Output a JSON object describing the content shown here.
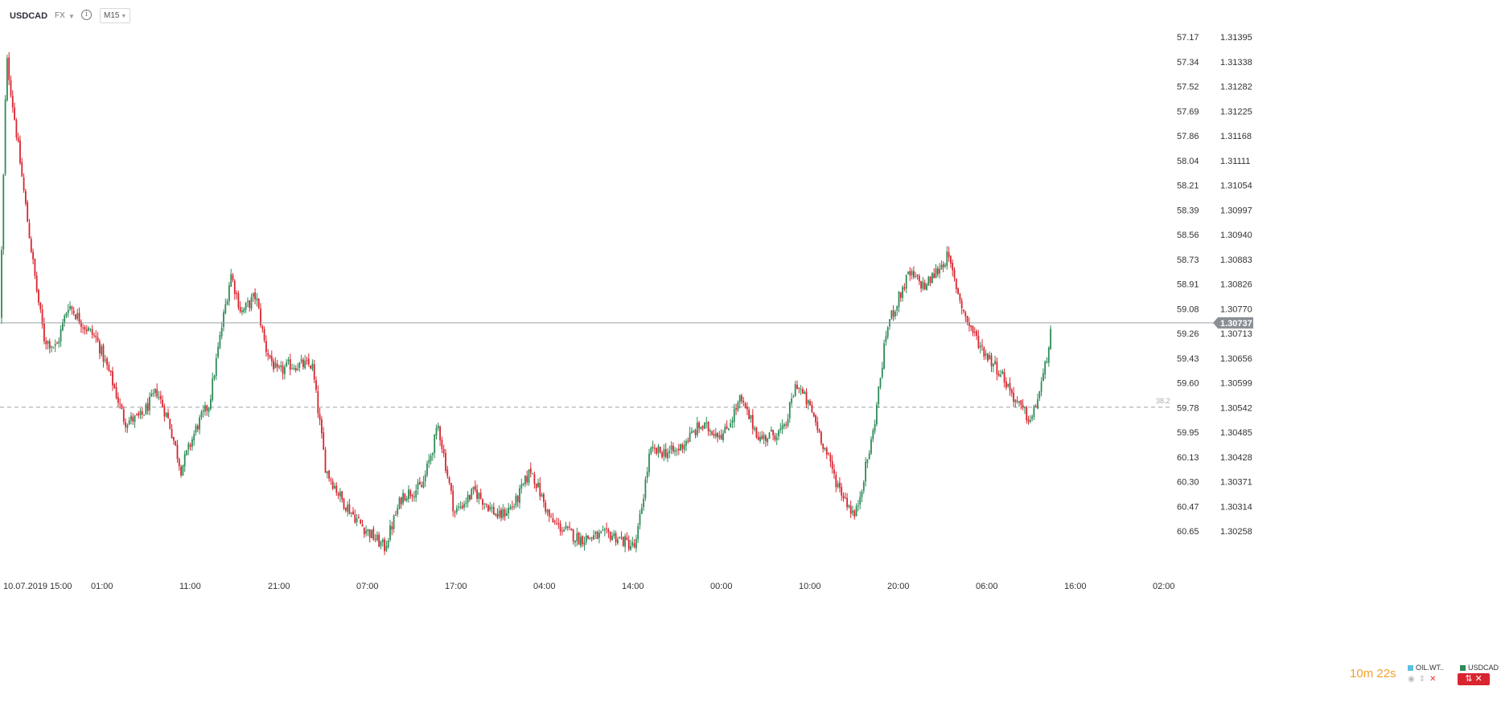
{
  "toolbar": {
    "symbol": "USDCAD",
    "market": "FX",
    "interval": "M15",
    "info_glyph": "i"
  },
  "chart_data": {
    "type": "candlestick",
    "symbol": "USDCAD",
    "timeframe": "M15",
    "right_axis": {
      "min": 1.3024,
      "max": 1.3144,
      "ticks": [
        "1.31395",
        "1.31338",
        "1.31282",
        "1.31225",
        "1.31168",
        "1.31111",
        "1.31054",
        "1.30997",
        "1.30940",
        "1.30883",
        "1.30826",
        "1.30770",
        "1.30713",
        "1.30656",
        "1.30599",
        "1.30542",
        "1.30485",
        "1.30428",
        "1.30371",
        "1.30314",
        "1.30258"
      ]
    },
    "left_axis": {
      "series": "OIL.WTI",
      "inverted": true,
      "ticks": [
        "57.17",
        "57.34",
        "57.52",
        "57.69",
        "57.86",
        "58.04",
        "58.21",
        "58.39",
        "58.56",
        "58.73",
        "58.91",
        "59.08",
        "59.26",
        "59.43",
        "59.60",
        "59.78",
        "59.95",
        "60.13",
        "60.30",
        "60.47",
        "60.65"
      ]
    },
    "x_tick_labels": [
      "10.07.2019",
      "15:00",
      "01:00",
      "11:00",
      "21:00",
      "07:00",
      "17:00",
      "04:00",
      "14:00",
      "00:00",
      "10:00",
      "20:00",
      "06:00",
      "16:00",
      "02:00"
    ],
    "last_price": 1.30737,
    "last_price_label": "1.30737",
    "fib_level": {
      "label": "38.2",
      "price": 1.30543
    },
    "close_path": [
      [
        0,
        1.3075
      ],
      [
        8,
        1.3135
      ],
      [
        20,
        1.3118
      ],
      [
        35,
        1.3096
      ],
      [
        45,
        1.3082
      ],
      [
        55,
        1.307
      ],
      [
        70,
        1.3068
      ],
      [
        85,
        1.3078
      ],
      [
        105,
        1.3073
      ],
      [
        120,
        1.307
      ],
      [
        140,
        1.306
      ],
      [
        155,
        1.3051
      ],
      [
        175,
        1.3052
      ],
      [
        195,
        1.3058
      ],
      [
        210,
        1.3051
      ],
      [
        225,
        1.304
      ],
      [
        245,
        1.305
      ],
      [
        260,
        1.3055
      ],
      [
        275,
        1.3072
      ],
      [
        287,
        1.3085
      ],
      [
        300,
        1.3076
      ],
      [
        318,
        1.308
      ],
      [
        330,
        1.3068
      ],
      [
        345,
        1.3062
      ],
      [
        360,
        1.3064
      ],
      [
        388,
        1.3064
      ],
      [
        405,
        1.304
      ],
      [
        425,
        1.3033
      ],
      [
        450,
        1.3027
      ],
      [
        478,
        1.3022
      ],
      [
        500,
        1.3034
      ],
      [
        525,
        1.3036
      ],
      [
        545,
        1.305
      ],
      [
        565,
        1.303
      ],
      [
        590,
        1.3035
      ],
      [
        620,
        1.3029
      ],
      [
        640,
        1.3032
      ],
      [
        660,
        1.304
      ],
      [
        685,
        1.3028
      ],
      [
        720,
        1.3024
      ],
      [
        760,
        1.3025
      ],
      [
        790,
        1.3022
      ],
      [
        808,
        1.3044
      ],
      [
        840,
        1.3044
      ],
      [
        870,
        1.305
      ],
      [
        900,
        1.3048
      ],
      [
        920,
        1.3056
      ],
      [
        945,
        1.3047
      ],
      [
        975,
        1.3049
      ],
      [
        990,
        1.306
      ],
      [
        1010,
        1.3053
      ],
      [
        1040,
        1.3037
      ],
      [
        1063,
        1.3029
      ],
      [
        1085,
        1.3048
      ],
      [
        1103,
        1.3073
      ],
      [
        1130,
        1.3085
      ],
      [
        1150,
        1.3082
      ],
      [
        1178,
        1.3089
      ],
      [
        1200,
        1.3075
      ],
      [
        1220,
        1.3068
      ],
      [
        1245,
        1.3062
      ],
      [
        1265,
        1.3055
      ],
      [
        1282,
        1.3051
      ],
      [
        1298,
        1.3062
      ],
      [
        1308,
        1.30737
      ]
    ]
  },
  "countdown": {
    "minutes": "10",
    "m_unit": "m",
    "seconds": "22",
    "s_unit": "s"
  },
  "legend": {
    "oil": {
      "label": "OIL.WT..",
      "color": "#5bc0de"
    },
    "usd": {
      "label": "USDCAD",
      "color": "#2e8b57"
    }
  },
  "colors": {
    "up": "#2e8b57",
    "down": "#d9252f",
    "grid_text": "#333333",
    "price_tag": "#8a8f96"
  }
}
